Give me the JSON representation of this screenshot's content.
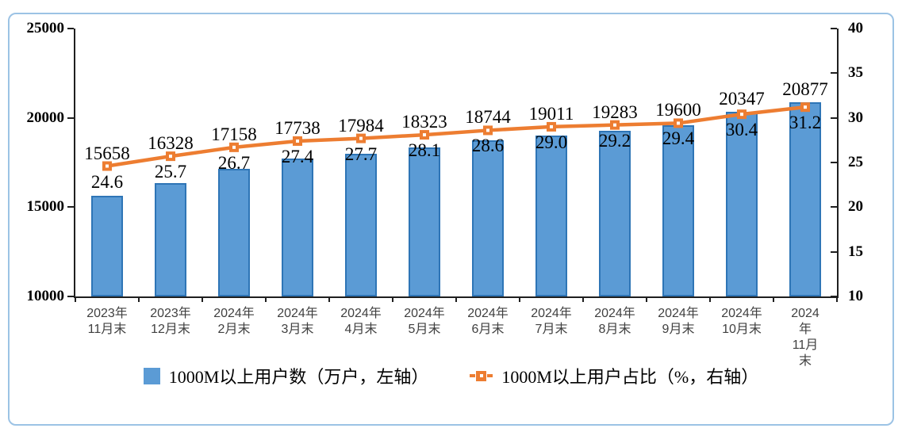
{
  "chart_data": {
    "type": "combo",
    "subtypes": [
      "bar",
      "line"
    ],
    "title": "",
    "categories": [
      [
        "2023年",
        "11月末"
      ],
      [
        "2023年",
        "12月末"
      ],
      [
        "2024年",
        "2月末"
      ],
      [
        "2024年",
        "3月末"
      ],
      [
        "2024年",
        "4月末"
      ],
      [
        "2024年",
        "5月末"
      ],
      [
        "2024年",
        "6月末"
      ],
      [
        "2024年",
        "7月末"
      ],
      [
        "2024年",
        "8月末"
      ],
      [
        "2024年",
        "9月末"
      ],
      [
        "2024年",
        "10月末"
      ],
      [
        "2024年",
        "11月末"
      ]
    ],
    "series": [
      {
        "name": "1000M以上用户数（万户，左轴）",
        "type": "bar",
        "axis": "left",
        "values": [
          15658,
          16328,
          17158,
          17738,
          17984,
          18323,
          18744,
          19011,
          19283,
          19600,
          20347,
          20877
        ]
      },
      {
        "name": "1000M以上用户占比（%，右轴）",
        "type": "line",
        "axis": "right",
        "values": [
          24.6,
          25.7,
          26.7,
          27.4,
          27.7,
          28.1,
          28.6,
          29.0,
          29.2,
          29.4,
          30.4,
          31.2
        ]
      }
    ],
    "left_axis": {
      "min": 10000,
      "max": 25000,
      "ticks": [
        25000,
        20000,
        15000,
        10000
      ]
    },
    "right_axis": {
      "min": 10,
      "max": 40,
      "ticks": [
        40,
        35,
        30,
        25,
        20,
        15,
        10
      ]
    },
    "grid": false,
    "legend_position": "bottom",
    "colors": {
      "bar_fill": "#5B9BD5",
      "bar_border": "#2E75B6",
      "line": "#ED7D31",
      "axis": "#1f1f1f",
      "frame_border": "#9CC3E5",
      "x_label": "#404040"
    }
  }
}
